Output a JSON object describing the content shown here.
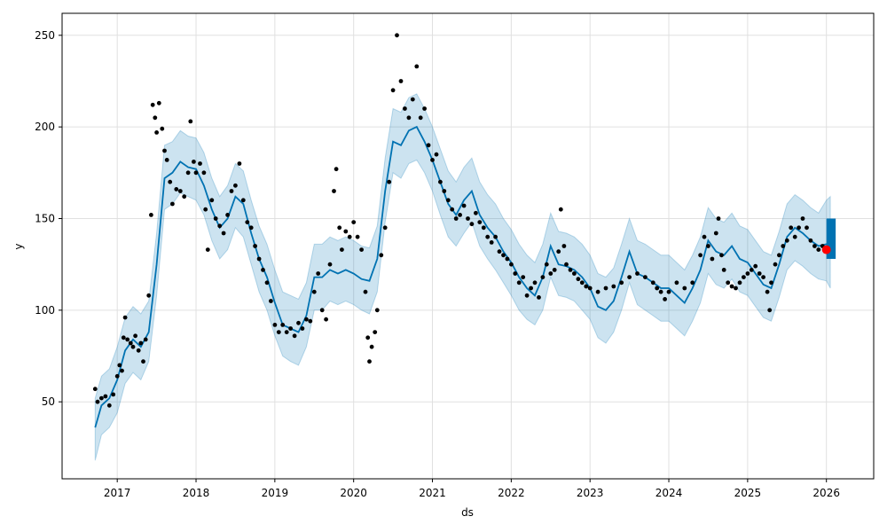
{
  "chart_data": {
    "type": "scatter",
    "title": "",
    "xlabel": "ds",
    "ylabel": "y",
    "xlim": [
      2016.3,
      2026.6
    ],
    "ylim": [
      8,
      262
    ],
    "x_ticks": [
      {
        "value": 2017,
        "label": "2017"
      },
      {
        "value": 2018,
        "label": "2018"
      },
      {
        "value": 2019,
        "label": "2019"
      },
      {
        "value": 2020,
        "label": "2020"
      },
      {
        "value": 2021,
        "label": "2021"
      },
      {
        "value": 2022,
        "label": "2022"
      },
      {
        "value": 2023,
        "label": "2023"
      },
      {
        "value": 2024,
        "label": "2024"
      },
      {
        "value": 2025,
        "label": "2025"
      },
      {
        "value": 2026,
        "label": "2026"
      }
    ],
    "y_ticks": [
      {
        "value": 50,
        "label": "50"
      },
      {
        "value": 100,
        "label": "100"
      },
      {
        "value": 150,
        "label": "150"
      },
      {
        "value": 200,
        "label": "200"
      },
      {
        "value": 250,
        "label": "250"
      }
    ],
    "grid": true,
    "colors": {
      "observed": "#000000",
      "forecast_line": "#0072B2",
      "uncertainty_band": "#0072B2",
      "highlight": "#ff0000",
      "grid": "#e0e0e0"
    },
    "series": [
      {
        "kind": "observed",
        "points": [
          [
            2016.72,
            57
          ],
          [
            2016.75,
            50
          ],
          [
            2016.8,
            52
          ],
          [
            2016.85,
            53
          ],
          [
            2016.9,
            48
          ],
          [
            2016.95,
            54
          ],
          [
            2017.0,
            64
          ],
          [
            2017.03,
            70
          ],
          [
            2017.06,
            67
          ],
          [
            2017.08,
            85
          ],
          [
            2017.1,
            96
          ],
          [
            2017.13,
            84
          ],
          [
            2017.17,
            82
          ],
          [
            2017.2,
            80
          ],
          [
            2017.23,
            86
          ],
          [
            2017.27,
            78
          ],
          [
            2017.3,
            82
          ],
          [
            2017.33,
            72
          ],
          [
            2017.36,
            84
          ],
          [
            2017.4,
            108
          ],
          [
            2017.43,
            152
          ],
          [
            2017.45,
            212
          ],
          [
            2017.48,
            205
          ],
          [
            2017.5,
            197
          ],
          [
            2017.53,
            213
          ],
          [
            2017.57,
            199
          ],
          [
            2017.6,
            187
          ],
          [
            2017.63,
            182
          ],
          [
            2017.67,
            170
          ],
          [
            2017.7,
            158
          ],
          [
            2017.75,
            166
          ],
          [
            2017.8,
            165
          ],
          [
            2017.85,
            162
          ],
          [
            2017.9,
            175
          ],
          [
            2017.93,
            203
          ],
          [
            2017.97,
            181
          ],
          [
            2018.0,
            175
          ],
          [
            2018.05,
            180
          ],
          [
            2018.1,
            175
          ],
          [
            2018.12,
            155
          ],
          [
            2018.15,
            133
          ],
          [
            2018.2,
            160
          ],
          [
            2018.25,
            150
          ],
          [
            2018.3,
            146
          ],
          [
            2018.35,
            142
          ],
          [
            2018.4,
            152
          ],
          [
            2018.45,
            165
          ],
          [
            2018.5,
            168
          ],
          [
            2018.55,
            180
          ],
          [
            2018.6,
            160
          ],
          [
            2018.65,
            148
          ],
          [
            2018.7,
            145
          ],
          [
            2018.75,
            135
          ],
          [
            2018.8,
            128
          ],
          [
            2018.85,
            122
          ],
          [
            2018.9,
            115
          ],
          [
            2018.95,
            105
          ],
          [
            2019.0,
            92
          ],
          [
            2019.05,
            88
          ],
          [
            2019.1,
            92
          ],
          [
            2019.15,
            88
          ],
          [
            2019.2,
            90
          ],
          [
            2019.25,
            86
          ],
          [
            2019.3,
            93
          ],
          [
            2019.35,
            90
          ],
          [
            2019.4,
            95
          ],
          [
            2019.45,
            94
          ],
          [
            2019.5,
            110
          ],
          [
            2019.55,
            120
          ],
          [
            2019.6,
            100
          ],
          [
            2019.65,
            95
          ],
          [
            2019.7,
            125
          ],
          [
            2019.75,
            165
          ],
          [
            2019.78,
            177
          ],
          [
            2019.82,
            145
          ],
          [
            2019.85,
            133
          ],
          [
            2019.9,
            143
          ],
          [
            2019.95,
            140
          ],
          [
            2020.0,
            148
          ],
          [
            2020.05,
            140
          ],
          [
            2020.1,
            133
          ],
          [
            2020.15,
            110
          ],
          [
            2020.18,
            85
          ],
          [
            2020.2,
            72
          ],
          [
            2020.23,
            80
          ],
          [
            2020.27,
            88
          ],
          [
            2020.3,
            100
          ],
          [
            2020.35,
            130
          ],
          [
            2020.4,
            145
          ],
          [
            2020.45,
            170
          ],
          [
            2020.5,
            220
          ],
          [
            2020.55,
            250
          ],
          [
            2020.6,
            225
          ],
          [
            2020.65,
            210
          ],
          [
            2020.7,
            205
          ],
          [
            2020.75,
            215
          ],
          [
            2020.8,
            233
          ],
          [
            2020.85,
            205
          ],
          [
            2020.9,
            210
          ],
          [
            2020.95,
            190
          ],
          [
            2021.0,
            182
          ],
          [
            2021.05,
            185
          ],
          [
            2021.1,
            170
          ],
          [
            2021.15,
            165
          ],
          [
            2021.2,
            160
          ],
          [
            2021.25,
            155
          ],
          [
            2021.3,
            150
          ],
          [
            2021.35,
            152
          ],
          [
            2021.4,
            157
          ],
          [
            2021.45,
            150
          ],
          [
            2021.5,
            147
          ],
          [
            2021.55,
            153
          ],
          [
            2021.6,
            148
          ],
          [
            2021.65,
            145
          ],
          [
            2021.7,
            140
          ],
          [
            2021.75,
            137
          ],
          [
            2021.8,
            140
          ],
          [
            2021.85,
            132
          ],
          [
            2021.9,
            130
          ],
          [
            2021.95,
            128
          ],
          [
            2022.0,
            125
          ],
          [
            2022.05,
            120
          ],
          [
            2022.1,
            115
          ],
          [
            2022.15,
            118
          ],
          [
            2022.2,
            108
          ],
          [
            2022.25,
            112
          ],
          [
            2022.3,
            115
          ],
          [
            2022.35,
            107
          ],
          [
            2022.4,
            118
          ],
          [
            2022.45,
            125
          ],
          [
            2022.5,
            120
          ],
          [
            2022.55,
            122
          ],
          [
            2022.6,
            132
          ],
          [
            2022.63,
            155
          ],
          [
            2022.67,
            135
          ],
          [
            2022.7,
            125
          ],
          [
            2022.75,
            122
          ],
          [
            2022.8,
            120
          ],
          [
            2022.85,
            117
          ],
          [
            2022.9,
            115
          ],
          [
            2022.95,
            113
          ],
          [
            2023.0,
            112
          ],
          [
            2023.1,
            110
          ],
          [
            2023.2,
            112
          ],
          [
            2023.3,
            113
          ],
          [
            2023.4,
            115
          ],
          [
            2023.5,
            118
          ],
          [
            2023.6,
            120
          ],
          [
            2023.7,
            118
          ],
          [
            2023.8,
            115
          ],
          [
            2023.85,
            112
          ],
          [
            2023.9,
            110
          ],
          [
            2023.95,
            106
          ],
          [
            2024.0,
            110
          ],
          [
            2024.1,
            115
          ],
          [
            2024.2,
            112
          ],
          [
            2024.3,
            115
          ],
          [
            2024.4,
            130
          ],
          [
            2024.45,
            140
          ],
          [
            2024.5,
            135
          ],
          [
            2024.55,
            128
          ],
          [
            2024.6,
            142
          ],
          [
            2024.63,
            150
          ],
          [
            2024.67,
            130
          ],
          [
            2024.7,
            122
          ],
          [
            2024.75,
            115
          ],
          [
            2024.8,
            113
          ],
          [
            2024.85,
            112
          ],
          [
            2024.9,
            115
          ],
          [
            2024.95,
            118
          ],
          [
            2025.0,
            120
          ],
          [
            2025.05,
            122
          ],
          [
            2025.1,
            124
          ],
          [
            2025.15,
            120
          ],
          [
            2025.2,
            118
          ],
          [
            2025.25,
            110
          ],
          [
            2025.28,
            100
          ],
          [
            2025.3,
            115
          ],
          [
            2025.35,
            125
          ],
          [
            2025.4,
            130
          ],
          [
            2025.45,
            135
          ],
          [
            2025.5,
            138
          ],
          [
            2025.55,
            145
          ],
          [
            2025.6,
            140
          ],
          [
            2025.65,
            145
          ],
          [
            2025.7,
            150
          ],
          [
            2025.75,
            145
          ],
          [
            2025.8,
            138
          ],
          [
            2025.85,
            135
          ],
          [
            2025.9,
            133
          ],
          [
            2025.95,
            135
          ],
          [
            2026.0,
            132
          ]
        ]
      },
      {
        "kind": "forecast",
        "x": [
          2016.72,
          2016.8,
          2016.9,
          2017.0,
          2017.1,
          2017.2,
          2017.3,
          2017.4,
          2017.5,
          2017.6,
          2017.7,
          2017.8,
          2017.9,
          2018.0,
          2018.1,
          2018.2,
          2018.3,
          2018.4,
          2018.5,
          2018.6,
          2018.7,
          2018.8,
          2018.9,
          2019.0,
          2019.1,
          2019.2,
          2019.3,
          2019.4,
          2019.5,
          2019.6,
          2019.7,
          2019.8,
          2019.9,
          2020.0,
          2020.1,
          2020.2,
          2020.3,
          2020.4,
          2020.5,
          2020.6,
          2020.7,
          2020.8,
          2020.9,
          2021.0,
          2021.1,
          2021.2,
          2021.3,
          2021.4,
          2021.5,
          2021.6,
          2021.7,
          2021.8,
          2021.9,
          2022.0,
          2022.1,
          2022.2,
          2022.3,
          2022.4,
          2022.5,
          2022.6,
          2022.7,
          2022.8,
          2022.9,
          2023.0,
          2023.1,
          2023.2,
          2023.3,
          2023.4,
          2023.5,
          2023.6,
          2023.7,
          2023.8,
          2023.9,
          2024.0,
          2024.1,
          2024.2,
          2024.3,
          2024.4,
          2024.5,
          2024.6,
          2024.7,
          2024.8,
          2024.9,
          2025.0,
          2025.1,
          2025.2,
          2025.3,
          2025.4,
          2025.5,
          2025.6,
          2025.7,
          2025.8,
          2025.9,
          2026.0,
          2026.05
        ],
        "yhat": [
          36,
          48,
          52,
          62,
          78,
          84,
          80,
          88,
          125,
          172,
          175,
          181,
          178,
          177,
          168,
          155,
          145,
          150,
          162,
          158,
          142,
          128,
          118,
          104,
          92,
          90,
          88,
          97,
          118,
          118,
          122,
          120,
          122,
          120,
          117,
          116,
          128,
          165,
          192,
          190,
          198,
          200,
          192,
          182,
          170,
          158,
          152,
          160,
          165,
          152,
          145,
          140,
          132,
          126,
          118,
          112,
          108,
          118,
          135,
          125,
          124,
          122,
          118,
          112,
          102,
          100,
          105,
          118,
          132,
          120,
          118,
          115,
          112,
          112,
          108,
          104,
          112,
          122,
          138,
          132,
          130,
          135,
          128,
          126,
          120,
          114,
          112,
          125,
          140,
          145,
          142,
          138,
          135,
          136,
          134
        ],
        "lower": [
          18,
          32,
          36,
          44,
          60,
          66,
          62,
          72,
          108,
          155,
          158,
          164,
          162,
          160,
          152,
          138,
          128,
          133,
          145,
          140,
          125,
          110,
          100,
          86,
          75,
          72,
          70,
          80,
          100,
          100,
          105,
          103,
          105,
          103,
          100,
          98,
          110,
          148,
          175,
          172,
          180,
          182,
          175,
          165,
          152,
          140,
          135,
          142,
          148,
          135,
          128,
          122,
          115,
          108,
          100,
          95,
          92,
          100,
          118,
          108,
          107,
          105,
          100,
          95,
          85,
          82,
          88,
          100,
          115,
          103,
          100,
          97,
          94,
          94,
          90,
          86,
          94,
          104,
          120,
          114,
          112,
          117,
          110,
          108,
          102,
          96,
          94,
          107,
          122,
          127,
          124,
          120,
          117,
          116,
          112
        ],
        "upper": [
          52,
          64,
          68,
          80,
          96,
          102,
          98,
          105,
          142,
          190,
          192,
          198,
          195,
          194,
          186,
          172,
          162,
          168,
          180,
          176,
          160,
          146,
          136,
          122,
          110,
          108,
          106,
          115,
          136,
          136,
          140,
          138,
          140,
          138,
          135,
          134,
          146,
          183,
          210,
          208,
          216,
          218,
          210,
          200,
          188,
          176,
          170,
          178,
          183,
          170,
          163,
          158,
          150,
          144,
          136,
          130,
          126,
          136,
          153,
          143,
          142,
          140,
          136,
          130,
          120,
          118,
          123,
          136,
          150,
          138,
          136,
          133,
          130,
          130,
          126,
          122,
          130,
          140,
          156,
          150,
          148,
          153,
          146,
          144,
          138,
          132,
          130,
          143,
          158,
          163,
          160,
          156,
          153,
          160,
          162
        ]
      },
      {
        "kind": "highlight",
        "points": [
          [
            2026.0,
            133
          ]
        ]
      }
    ]
  }
}
